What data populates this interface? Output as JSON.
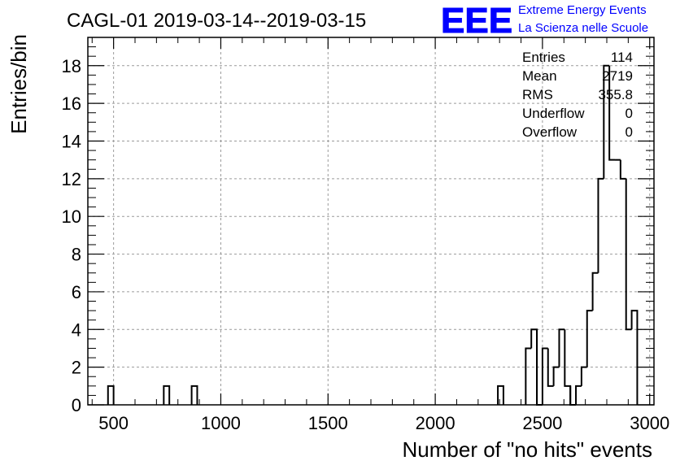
{
  "page": {
    "title": "CAGL-01 2019-03-14--2019-03-15"
  },
  "brand": {
    "logo_text": "EEE",
    "line1": "Extreme Energy Events",
    "line2": "La Scienza nelle Scuole",
    "color": "#0000ff"
  },
  "stats": [
    {
      "label": "Entries",
      "value": "114"
    },
    {
      "label": "Mean",
      "value": "2719"
    },
    {
      "label": "RMS",
      "value": "355.8"
    },
    {
      "label": "Underflow",
      "value": "0"
    },
    {
      "label": "Overflow",
      "value": "0"
    }
  ],
  "chart_data": {
    "type": "bar",
    "histogram": true,
    "title": "CAGL-01 2019-03-14--2019-03-15",
    "xlabel": "Number of \"no hits\" events",
    "ylabel": "Entries/bin",
    "xlim": [
      380,
      3020
    ],
    "ylim": [
      0,
      19.5
    ],
    "x_ticks": [
      500,
      1000,
      1500,
      2000,
      2500,
      3000
    ],
    "y_ticks": [
      0,
      2,
      4,
      6,
      8,
      10,
      12,
      14,
      16,
      18
    ],
    "grid": true,
    "bin_width": 26,
    "bins": [
      {
        "x0": 474,
        "value": 1
      },
      {
        "x0": 734,
        "value": 1
      },
      {
        "x0": 864,
        "value": 1
      },
      {
        "x0": 2292,
        "value": 1
      },
      {
        "x0": 2422,
        "value": 3
      },
      {
        "x0": 2448,
        "value": 4
      },
      {
        "x0": 2474,
        "value": 0
      },
      {
        "x0": 2500,
        "value": 3
      },
      {
        "x0": 2526,
        "value": 1
      },
      {
        "x0": 2552,
        "value": 2
      },
      {
        "x0": 2578,
        "value": 4
      },
      {
        "x0": 2604,
        "value": 1
      },
      {
        "x0": 2630,
        "value": 0
      },
      {
        "x0": 2656,
        "value": 1
      },
      {
        "x0": 2682,
        "value": 2
      },
      {
        "x0": 2708,
        "value": 5
      },
      {
        "x0": 2734,
        "value": 7
      },
      {
        "x0": 2760,
        "value": 12
      },
      {
        "x0": 2786,
        "value": 18
      },
      {
        "x0": 2812,
        "value": 13
      },
      {
        "x0": 2838,
        "value": 13
      },
      {
        "x0": 2864,
        "value": 12
      },
      {
        "x0": 2890,
        "value": 4
      },
      {
        "x0": 2916,
        "value": 5
      }
    ],
    "line_color": "#000000"
  }
}
